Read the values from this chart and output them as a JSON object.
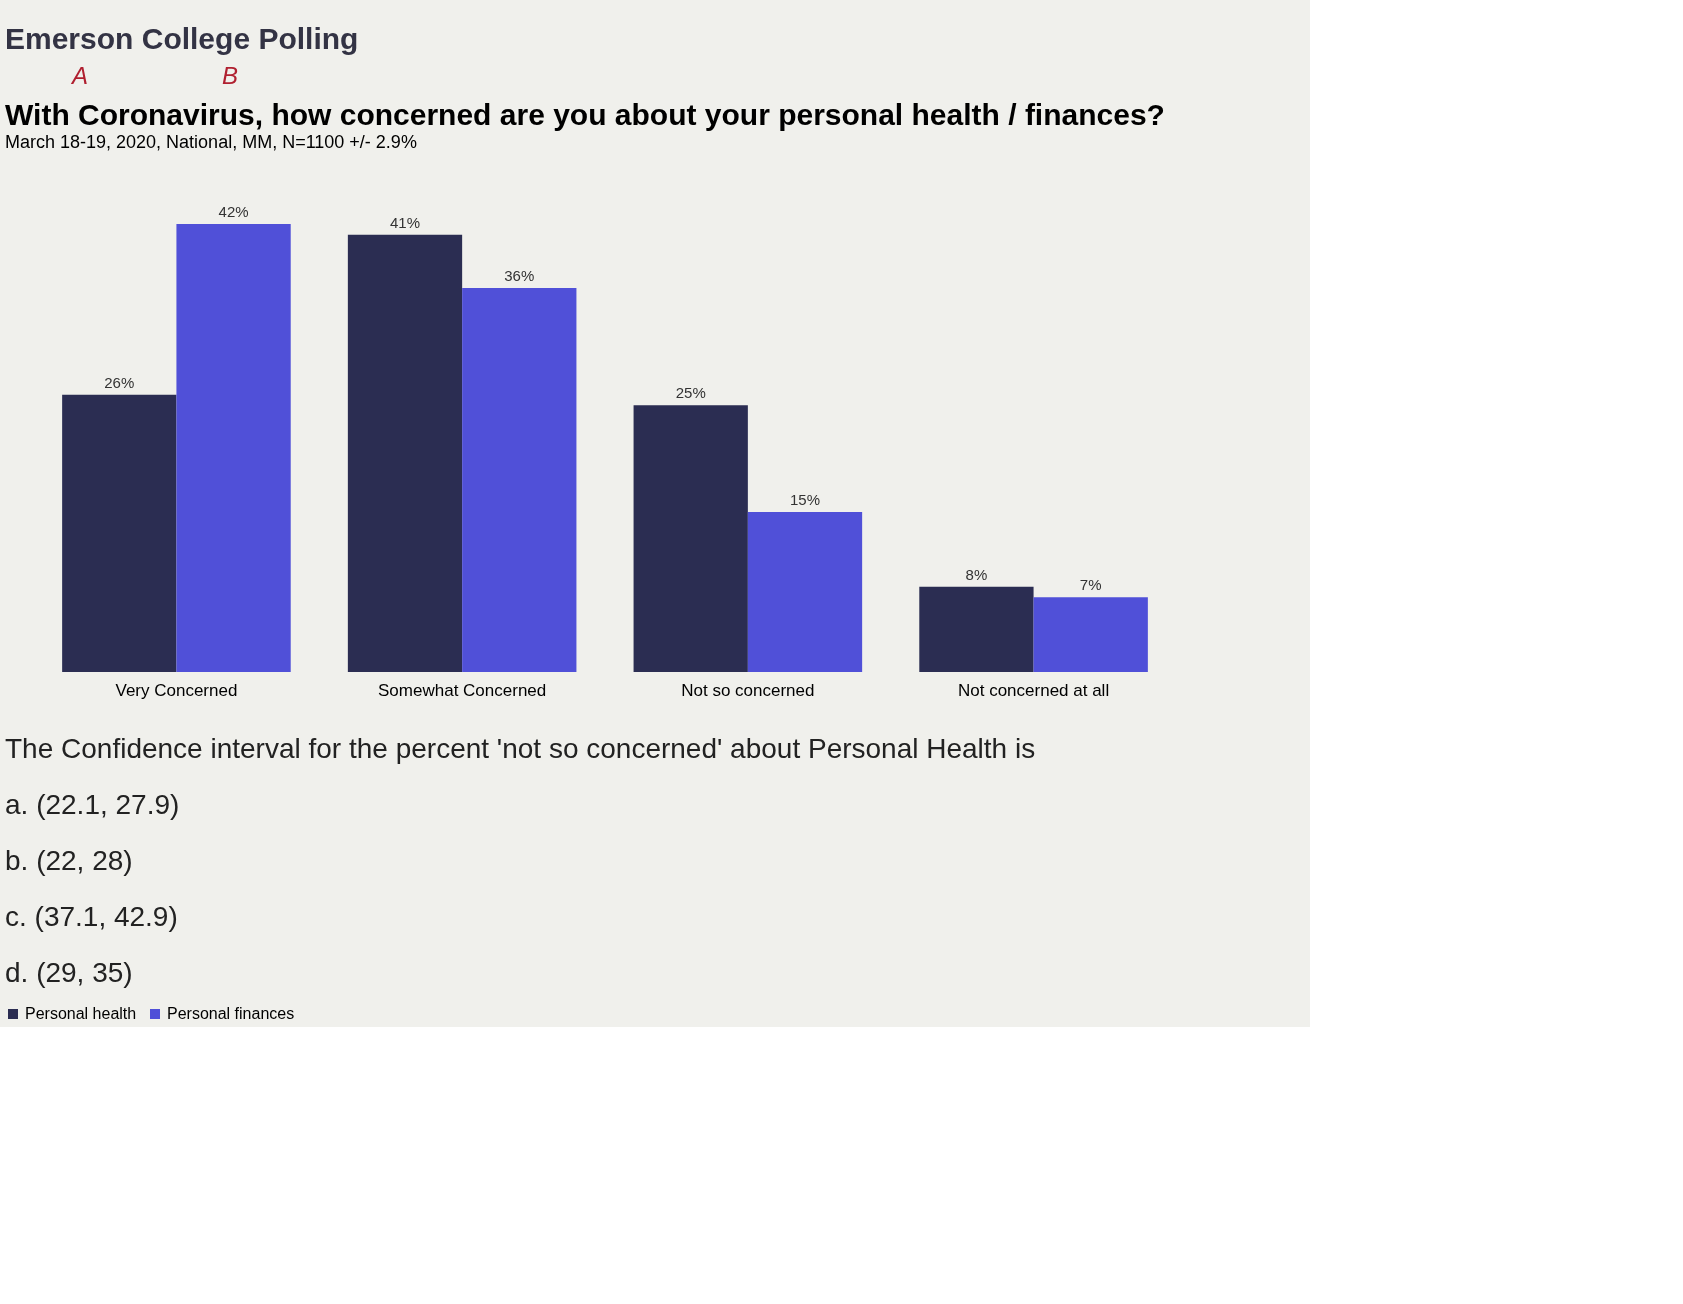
{
  "chart_data": {
    "type": "bar",
    "title": "With Coronavirus, how concerned are you about your personal health / finances?",
    "subtitle": "March 18-19, 2020, National, MM, N=1100 +/- 2.9%",
    "categories": [
      "Very Concerned",
      "Somewhat Concerned",
      "Not so concerned",
      "Not concerned at all"
    ],
    "series": [
      {
        "name": "Personal health",
        "color": "#2b2d52",
        "values": [
          26,
          41,
          25,
          8
        ],
        "value_labels": [
          "26%",
          "41%",
          "25%",
          "8%"
        ]
      },
      {
        "name": "Personal finances",
        "color": "#5050d8",
        "values": [
          42,
          36,
          15,
          7
        ],
        "value_labels": [
          "42%",
          "36%",
          "15%",
          "7%"
        ]
      }
    ],
    "tick_labels": "x",
    "legend": "bottom",
    "annotations": [
      "Emerson College Polling",
      "A",
      "B",
      "The Confidence interval for the percent 'not so concerned' about Personal Health is",
      "a. (22.1, 27.9)",
      "b. (22, 28)",
      "c. (37.1, 42.9)",
      "d. (29, 35)"
    ]
  }
}
